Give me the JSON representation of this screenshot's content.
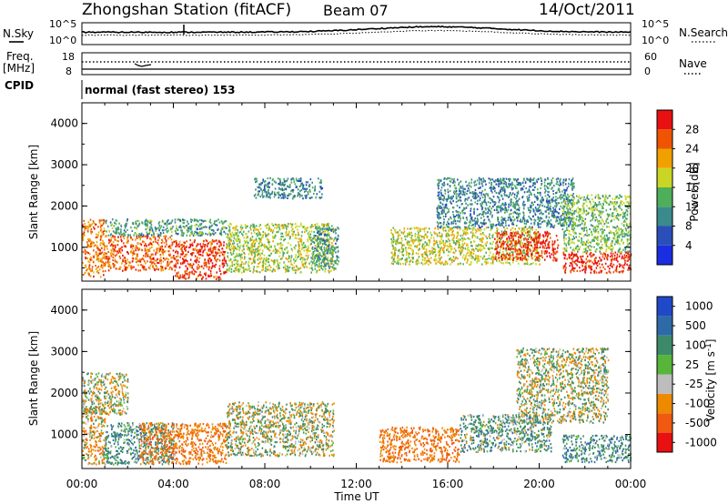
{
  "header": {
    "station": "Zhongshan Station (fitACF)",
    "beam": "Beam 07",
    "date": "14/Oct/2011"
  },
  "noise_panel": {
    "left_label": "N.Sky",
    "right_label": "N.Search",
    "left_ticks": [
      "10^5",
      "10^0"
    ],
    "right_ticks": [
      "10^5",
      "10^0"
    ]
  },
  "freq_panel": {
    "left_label_1": "Freq.",
    "left_label_2": "[MHz]",
    "right_label": "Nave",
    "left_ticks": [
      "18",
      "8"
    ],
    "right_ticks": [
      "60",
      "0"
    ]
  },
  "cpid": {
    "label": "CPID",
    "mode": "normal (fast stereo) 153"
  },
  "chart_data": [
    {
      "type": "heatmap",
      "name": "power",
      "ylabel": "Slant Range [km]",
      "xlabel": "Time UT",
      "x_ticks": [
        "00:00",
        "04:00",
        "08:00",
        "12:00",
        "16:00",
        "20:00",
        "00:00"
      ],
      "y_ticks": [
        1000,
        2000,
        3000,
        4000
      ],
      "ylim": [
        180,
        4500
      ],
      "xlim_hours": [
        0,
        24
      ],
      "colorbar": {
        "label": "Power [dB]",
        "ticks": [
          4,
          8,
          12,
          16,
          20,
          24,
          28
        ],
        "colors": [
          "#1a2de0",
          "#2a4fb8",
          "#3b8a8c",
          "#4fae5a",
          "#c9d625",
          "#f0a100",
          "#ef5400",
          "#e81010"
        ]
      },
      "regions": [
        {
          "t0": 0.0,
          "t1": 1.0,
          "r0": 300,
          "r1": 1700,
          "dB": 22
        },
        {
          "t0": 1.0,
          "t1": 4.0,
          "r0": 450,
          "r1": 1300,
          "dB": 24
        },
        {
          "t0": 1.0,
          "t1": 6.3,
          "r0": 1300,
          "r1": 1700,
          "dB": 10
        },
        {
          "t0": 4.0,
          "t1": 6.3,
          "r0": 250,
          "r1": 1200,
          "dB": 26
        },
        {
          "t0": 6.3,
          "t1": 11.0,
          "r0": 400,
          "r1": 1600,
          "dB": 15
        },
        {
          "t0": 7.5,
          "t1": 10.5,
          "r0": 2200,
          "r1": 2700,
          "dB": 8
        },
        {
          "t0": 10.0,
          "t1": 11.2,
          "r0": 500,
          "r1": 1500,
          "dB": 9
        },
        {
          "t0": 13.5,
          "t1": 20.0,
          "r0": 600,
          "r1": 1500,
          "dB": 16
        },
        {
          "t0": 15.5,
          "t1": 21.5,
          "r0": 1500,
          "r1": 2700,
          "dB": 8
        },
        {
          "t0": 18.0,
          "t1": 20.8,
          "r0": 700,
          "r1": 1400,
          "dB": 27
        },
        {
          "t0": 21.0,
          "t1": 24.0,
          "r0": 400,
          "r1": 900,
          "dB": 27
        },
        {
          "t0": 21.0,
          "t1": 24.0,
          "r0": 900,
          "r1": 2300,
          "dB": 13
        }
      ]
    },
    {
      "type": "heatmap",
      "name": "velocity",
      "ylabel": "Slant Range [km]",
      "xlabel": "Time UT",
      "x_ticks": [
        "00:00",
        "04:00",
        "08:00",
        "12:00",
        "16:00",
        "20:00",
        "00:00"
      ],
      "y_ticks": [
        1000,
        2000,
        3000,
        4000
      ],
      "ylim": [
        180,
        4500
      ],
      "xlim_hours": [
        0,
        24
      ],
      "colorbar": {
        "label": "Velocity [m s",
        "label_sup": "-1",
        "label_end": "]",
        "ticks": [
          "1000",
          "500",
          "100",
          "25",
          "-25",
          "-100",
          "-500",
          "-1000"
        ],
        "colors": [
          "#1f49c8",
          "#2d6aa6",
          "#3d8a6a",
          "#57b53a",
          "#bdbdbd",
          "#ee8a00",
          "#f05a10",
          "#e81010"
        ]
      },
      "regions": [
        {
          "t0": 0.0,
          "t1": 1.0,
          "r0": 300,
          "r1": 1700,
          "v": -150
        },
        {
          "t0": 0.0,
          "t1": 2.0,
          "r0": 1500,
          "r1": 2500,
          "v": 0
        },
        {
          "t0": 1.0,
          "t1": 4.0,
          "r0": 300,
          "r1": 1300,
          "v": 200
        },
        {
          "t0": 2.5,
          "t1": 6.3,
          "r0": 300,
          "r1": 1300,
          "v": -300
        },
        {
          "t0": 6.3,
          "t1": 11.0,
          "r0": 500,
          "r1": 1800,
          "v": 0
        },
        {
          "t0": 13.0,
          "t1": 16.5,
          "r0": 350,
          "r1": 1200,
          "v": -300
        },
        {
          "t0": 16.5,
          "t1": 20.5,
          "r0": 600,
          "r1": 1500,
          "v": 150
        },
        {
          "t0": 19.0,
          "t1": 23.0,
          "r0": 1300,
          "r1": 3100,
          "v": 0
        },
        {
          "t0": 21.0,
          "t1": 24.0,
          "r0": 350,
          "r1": 1000,
          "v": 200
        }
      ]
    }
  ]
}
